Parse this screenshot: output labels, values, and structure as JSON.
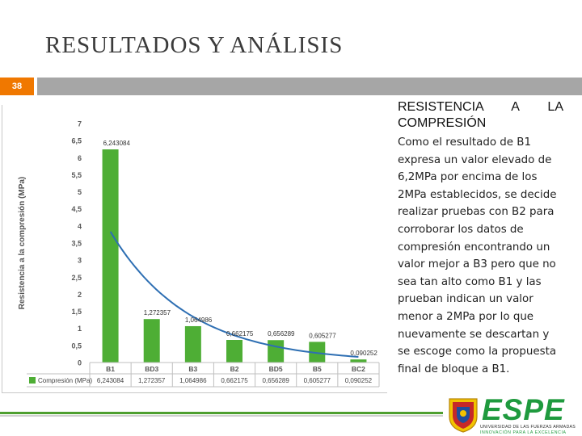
{
  "slide": {
    "title": "RESULTADOS Y ANÁLISIS",
    "number": "38"
  },
  "text": {
    "heading_line1": "RESISTENCIA A LA",
    "heading_line2": "COMPRESIÓN",
    "body": "Como el resultado de B1 expresa un valor elevado de 6,2MPa por encima de los 2MPa establecidos, se decide realizar pruebas con B2 para corroborar los datos de compresión encontrando un valor mejor a B3 pero que no sea tan alto como B1 y las prueban indican un valor menor a 2MPa por lo que nuevamente se descartan y se escoge como la propuesta final de bloque a B1."
  },
  "logo": {
    "name": "ESPE",
    "line1": "UNIVERSIDAD DE LAS FUERZAS ARMADAS",
    "line2": "INNOVACIÓN PARA LA EXCELENCIA"
  },
  "colors": {
    "bar": "#4eae35",
    "trend": "#2e6fb3",
    "accent": "#f07800",
    "brand": "#1f9a3e"
  },
  "chart_data": {
    "type": "bar",
    "categories": [
      "B1",
      "BD3",
      "B3",
      "B2",
      "BD5",
      "B5",
      "BC2"
    ],
    "series": [
      {
        "name": "Compresión (MPa)",
        "values": [
          6.243084,
          1.272357,
          1.064986,
          0.662175,
          0.656289,
          0.605277,
          0.090252
        ],
        "labels": [
          "6,243084",
          "1,272357",
          "1,064986",
          "0,662175",
          "0,656289",
          "0,605277",
          "0,090252"
        ]
      }
    ],
    "trendline": "exponential",
    "ylabel": "Resistencia a la compresión (MPa)",
    "ylim": [
      0,
      7
    ],
    "yticks": [
      "0",
      "0,5",
      "1",
      "1,5",
      "2",
      "2,5",
      "3",
      "3,5",
      "4",
      "4,5",
      "5",
      "5,5",
      "6",
      "6,5",
      "7"
    ],
    "data_table": true,
    "grid": false
  }
}
